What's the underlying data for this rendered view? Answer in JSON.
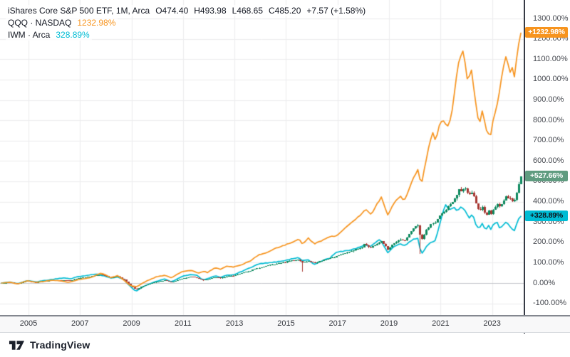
{
  "legend": {
    "title": "iShares Core S&P 500 ETF, 1M, Arca",
    "ohlc": [
      "O474.40",
      "H493.98",
      "L468.65",
      "C485.20",
      "+7.57 (+1.58%)"
    ],
    "compare": [
      {
        "symbol": "QQQ · NASDAQ",
        "value": "1232.98%",
        "color": "#f7941e"
      },
      {
        "symbol": "IWM · Arca",
        "value": "328.89%",
        "color": "#00bcd4"
      }
    ]
  },
  "footer": {
    "brand": "TradingView"
  },
  "chart_data": {
    "type": "candlestick+line",
    "title": "iShares Core S&P 500 ETF, 1M, Arca vs QQQ vs IWM (percent change)",
    "x_domain": [
      2003.894,
      2024.227
    ],
    "y_domain_pct": [
      -157.3,
      1391.4
    ],
    "start_year": 2003.95,
    "end_year": 2024.125,
    "x_ticks": [
      2005,
      2007,
      2009,
      2011,
      2013,
      2015,
      2017,
      2019,
      2021,
      2023
    ],
    "y_ticks_pct": [
      1300,
      1200,
      1100,
      1000,
      900,
      800,
      700,
      600,
      500,
      400,
      300,
      200,
      100,
      0,
      -100
    ],
    "y_tick_labels": [
      "1300.00%",
      "1200.00%",
      "1100.00%",
      "1000.00%",
      "900.00%",
      "800.00%",
      "700.00%",
      "600.00%",
      "500.00%",
      "400.00%",
      "300.00%",
      "200.00%",
      "100.00%",
      "0.00%",
      "-100.00%"
    ],
    "style": {
      "grid_color": "#ededee",
      "zero_line_color": "#c4c6cb",
      "axis_text_color": "#45484f",
      "separator_color": "#363a45"
    },
    "series": [
      {
        "id": "ivv",
        "name": "iShares Core S&P 500 ETF",
        "type": "candle",
        "up_color": "#0e8a5f",
        "down_color": "#a83732",
        "last_pct": 527.66,
        "badge_label": "+527.66%",
        "badge_bg": "#5f9c80",
        "badge_text": "#ffffff",
        "keyframes": [
          [
            2003.95,
            0
          ],
          [
            2004.25,
            3
          ],
          [
            2004.6,
            -2
          ],
          [
            2004.95,
            9
          ],
          [
            2005.3,
            4
          ],
          [
            2005.6,
            8
          ],
          [
            2005.95,
            13
          ],
          [
            2006.4,
            14
          ],
          [
            2006.6,
            11
          ],
          [
            2006.95,
            25
          ],
          [
            2007.4,
            32
          ],
          [
            2007.78,
            42
          ],
          [
            2007.95,
            37
          ],
          [
            2008.2,
            26
          ],
          [
            2008.45,
            32
          ],
          [
            2008.7,
            16
          ],
          [
            2008.9,
            -8
          ],
          [
            2009.17,
            -32
          ],
          [
            2009.5,
            -12
          ],
          [
            2009.95,
            6
          ],
          [
            2010.3,
            14
          ],
          [
            2010.55,
            3
          ],
          [
            2010.95,
            22
          ],
          [
            2011.3,
            30
          ],
          [
            2011.55,
            27
          ],
          [
            2011.75,
            12
          ],
          [
            2011.95,
            18
          ],
          [
            2012.25,
            30
          ],
          [
            2012.45,
            24
          ],
          [
            2012.7,
            34
          ],
          [
            2012.95,
            36
          ],
          [
            2013.3,
            50
          ],
          [
            2013.6,
            60
          ],
          [
            2013.95,
            76
          ],
          [
            2014.35,
            88
          ],
          [
            2014.7,
            98
          ],
          [
            2014.95,
            103
          ],
          [
            2015.2,
            110
          ],
          [
            2015.45,
            114
          ],
          [
            2015.65,
            100
          ],
          [
            2015.85,
            108
          ],
          [
            2016.1,
            98
          ],
          [
            2016.45,
            115
          ],
          [
            2016.7,
            122
          ],
          [
            2016.95,
            132
          ],
          [
            2017.3,
            148
          ],
          [
            2017.6,
            160
          ],
          [
            2017.95,
            178
          ],
          [
            2018.05,
            192
          ],
          [
            2018.25,
            172
          ],
          [
            2018.55,
            192
          ],
          [
            2018.7,
            205
          ],
          [
            2018.95,
            165
          ],
          [
            2019.2,
            198
          ],
          [
            2019.45,
            215
          ],
          [
            2019.6,
            208
          ],
          [
            2019.95,
            270
          ],
          [
            2020.12,
            285
          ],
          [
            2020.25,
            210
          ],
          [
            2020.45,
            260
          ],
          [
            2020.6,
            285
          ],
          [
            2020.8,
            300
          ],
          [
            2020.95,
            330
          ],
          [
            2021.2,
            360
          ],
          [
            2021.45,
            400
          ],
          [
            2021.6,
            430
          ],
          [
            2021.72,
            465
          ],
          [
            2021.82,
            450
          ],
          [
            2021.92,
            472
          ],
          [
            2022.0,
            455
          ],
          [
            2022.1,
            430
          ],
          [
            2022.25,
            450
          ],
          [
            2022.35,
            395
          ],
          [
            2022.5,
            345
          ],
          [
            2022.6,
            380
          ],
          [
            2022.75,
            330
          ],
          [
            2022.85,
            355
          ],
          [
            2022.95,
            340
          ],
          [
            2023.05,
            365
          ],
          [
            2023.2,
            385
          ],
          [
            2023.3,
            370
          ],
          [
            2023.45,
            405
          ],
          [
            2023.55,
            425
          ],
          [
            2023.7,
            415
          ],
          [
            2023.85,
            400
          ],
          [
            2023.97,
            455
          ],
          [
            2024.05,
            495
          ],
          [
            2024.125,
            527.66
          ]
        ],
        "special_wicks": [
          {
            "year": 2015.58,
            "low_pct": 56
          },
          {
            "year": 2020.21,
            "low_pct": 145
          }
        ]
      },
      {
        "id": "qqq",
        "name": "QQQ · NASDAQ",
        "type": "line",
        "color": "#f7941e",
        "last_pct": 1232.98,
        "badge_label": "+1232.98%",
        "badge_bg": "#f7941e",
        "badge_text": "#ffffff",
        "keyframes": [
          [
            2003.95,
            0
          ],
          [
            2004.25,
            4
          ],
          [
            2004.6,
            -4
          ],
          [
            2004.95,
            11
          ],
          [
            2005.3,
            3
          ],
          [
            2005.6,
            8
          ],
          [
            2005.95,
            14
          ],
          [
            2006.3,
            9
          ],
          [
            2006.55,
            4
          ],
          [
            2006.95,
            16
          ],
          [
            2007.4,
            26
          ],
          [
            2007.8,
            48
          ],
          [
            2008.0,
            40
          ],
          [
            2008.2,
            27
          ],
          [
            2008.45,
            36
          ],
          [
            2008.7,
            15
          ],
          [
            2008.95,
            -12
          ],
          [
            2009.2,
            -18
          ],
          [
            2009.5,
            5
          ],
          [
            2009.95,
            30
          ],
          [
            2010.3,
            38
          ],
          [
            2010.55,
            26
          ],
          [
            2010.95,
            56
          ],
          [
            2011.35,
            62
          ],
          [
            2011.6,
            48
          ],
          [
            2011.8,
            58
          ],
          [
            2011.95,
            52
          ],
          [
            2012.25,
            76
          ],
          [
            2012.45,
            68
          ],
          [
            2012.7,
            84
          ],
          [
            2012.95,
            78
          ],
          [
            2013.3,
            92
          ],
          [
            2013.6,
            108
          ],
          [
            2013.95,
            140
          ],
          [
            2014.3,
            152
          ],
          [
            2014.6,
            172
          ],
          [
            2014.95,
            186
          ],
          [
            2015.2,
            198
          ],
          [
            2015.5,
            216
          ],
          [
            2015.65,
            190
          ],
          [
            2015.85,
            222
          ],
          [
            2016.1,
            192
          ],
          [
            2016.45,
            212
          ],
          [
            2016.7,
            228
          ],
          [
            2016.95,
            232
          ],
          [
            2017.3,
            272
          ],
          [
            2017.6,
            302
          ],
          [
            2017.95,
            340
          ],
          [
            2018.1,
            365
          ],
          [
            2018.3,
            335
          ],
          [
            2018.55,
            395
          ],
          [
            2018.7,
            420
          ],
          [
            2018.95,
            335
          ],
          [
            2019.2,
            395
          ],
          [
            2019.45,
            425
          ],
          [
            2019.6,
            405
          ],
          [
            2019.95,
            520
          ],
          [
            2020.12,
            560
          ],
          [
            2020.25,
            480
          ],
          [
            2020.45,
            610
          ],
          [
            2020.6,
            700
          ],
          [
            2020.72,
            745
          ],
          [
            2020.8,
            690
          ],
          [
            2020.95,
            775
          ],
          [
            2021.1,
            800
          ],
          [
            2021.3,
            770
          ],
          [
            2021.45,
            845
          ],
          [
            2021.6,
            1000
          ],
          [
            2021.72,
            1095
          ],
          [
            2021.85,
            1150
          ],
          [
            2021.95,
            1085
          ],
          [
            2022.05,
            990
          ],
          [
            2022.2,
            1050
          ],
          [
            2022.35,
            900
          ],
          [
            2022.5,
            760
          ],
          [
            2022.6,
            855
          ],
          [
            2022.8,
            745
          ],
          [
            2022.95,
            730
          ],
          [
            2023.05,
            805
          ],
          [
            2023.2,
            875
          ],
          [
            2023.4,
            1035
          ],
          [
            2023.55,
            1115
          ],
          [
            2023.7,
            1030
          ],
          [
            2023.8,
            1060
          ],
          [
            2023.88,
            1005
          ],
          [
            2023.97,
            1125
          ],
          [
            2024.05,
            1190
          ],
          [
            2024.125,
            1232.98
          ]
        ]
      },
      {
        "id": "iwm",
        "name": "IWM · Arca",
        "type": "line",
        "color": "#00bcd4",
        "last_pct": 328.89,
        "badge_label": "+328.89%",
        "badge_bg": "#00bcd4",
        "badge_text": "#10131a",
        "keyframes": [
          [
            2003.95,
            0
          ],
          [
            2004.25,
            5
          ],
          [
            2004.6,
            -3
          ],
          [
            2004.95,
            12
          ],
          [
            2005.3,
            6
          ],
          [
            2005.6,
            12
          ],
          [
            2005.95,
            18
          ],
          [
            2006.4,
            26
          ],
          [
            2006.6,
            20
          ],
          [
            2006.95,
            32
          ],
          [
            2007.4,
            40
          ],
          [
            2007.6,
            45
          ],
          [
            2007.95,
            35
          ],
          [
            2008.2,
            25
          ],
          [
            2008.45,
            30
          ],
          [
            2008.7,
            18
          ],
          [
            2008.9,
            -10
          ],
          [
            2009.17,
            -40
          ],
          [
            2009.5,
            -15
          ],
          [
            2009.95,
            8
          ],
          [
            2010.3,
            20
          ],
          [
            2010.55,
            5
          ],
          [
            2010.95,
            32
          ],
          [
            2011.3,
            42
          ],
          [
            2011.55,
            38
          ],
          [
            2011.75,
            15
          ],
          [
            2011.95,
            22
          ],
          [
            2012.25,
            35
          ],
          [
            2012.45,
            28
          ],
          [
            2012.7,
            38
          ],
          [
            2012.95,
            40
          ],
          [
            2013.3,
            58
          ],
          [
            2013.6,
            75
          ],
          [
            2013.95,
            95
          ],
          [
            2014.35,
            100
          ],
          [
            2014.7,
            105
          ],
          [
            2014.95,
            110
          ],
          [
            2015.2,
            118
          ],
          [
            2015.45,
            125
          ],
          [
            2015.65,
            110
          ],
          [
            2015.85,
            115
          ],
          [
            2016.1,
            90
          ],
          [
            2016.45,
            112
          ],
          [
            2016.7,
            122
          ],
          [
            2016.95,
            152
          ],
          [
            2017.3,
            158
          ],
          [
            2017.6,
            165
          ],
          [
            2017.95,
            182
          ],
          [
            2018.05,
            190
          ],
          [
            2018.25,
            180
          ],
          [
            2018.55,
            205
          ],
          [
            2018.65,
            215
          ],
          [
            2018.95,
            150
          ],
          [
            2019.2,
            180
          ],
          [
            2019.45,
            192
          ],
          [
            2019.6,
            185
          ],
          [
            2019.95,
            215
          ],
          [
            2020.12,
            220
          ],
          [
            2020.25,
            140
          ],
          [
            2020.45,
            180
          ],
          [
            2020.6,
            200
          ],
          [
            2020.8,
            210
          ],
          [
            2020.95,
            280
          ],
          [
            2021.1,
            350
          ],
          [
            2021.2,
            385
          ],
          [
            2021.35,
            360
          ],
          [
            2021.5,
            375
          ],
          [
            2021.65,
            352
          ],
          [
            2021.8,
            378
          ],
          [
            2021.9,
            362
          ],
          [
            2021.98,
            348
          ],
          [
            2022.1,
            318
          ],
          [
            2022.25,
            340
          ],
          [
            2022.35,
            290
          ],
          [
            2022.5,
            262
          ],
          [
            2022.6,
            295
          ],
          [
            2022.75,
            258
          ],
          [
            2022.85,
            290
          ],
          [
            2022.95,
            262
          ],
          [
            2023.05,
            290
          ],
          [
            2023.2,
            300
          ],
          [
            2023.3,
            268
          ],
          [
            2023.45,
            290
          ],
          [
            2023.55,
            300
          ],
          [
            2023.7,
            278
          ],
          [
            2023.85,
            250
          ],
          [
            2023.97,
            295
          ],
          [
            2024.05,
            318
          ],
          [
            2024.125,
            328.89
          ]
        ]
      }
    ]
  }
}
